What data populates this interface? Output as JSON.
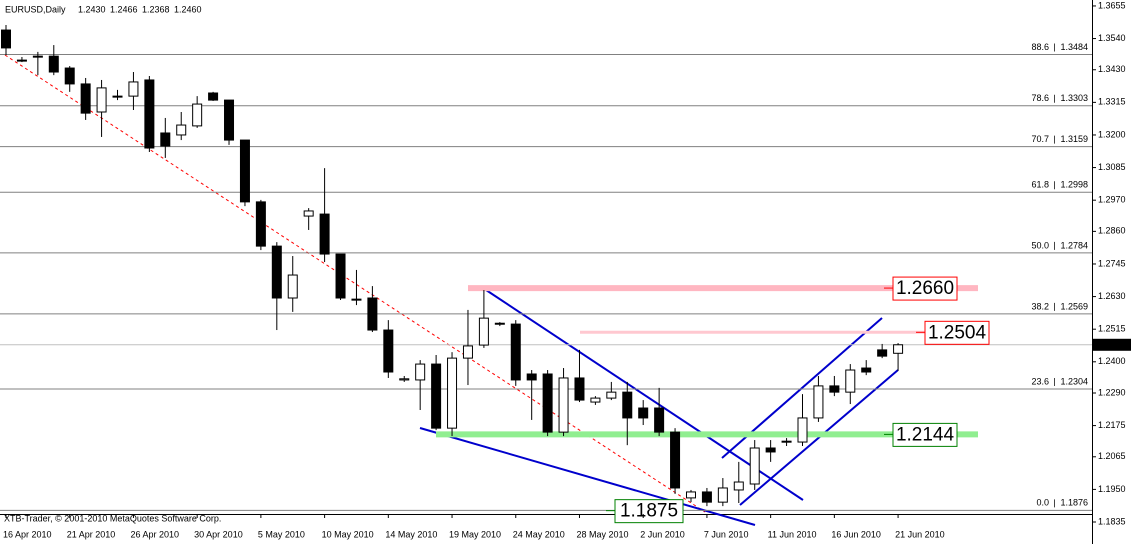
{
  "chart_data": {
    "type": "candlestick",
    "header": {
      "title": "EURUSD,Daily",
      "values": [
        "1.2430",
        "1.2466",
        "1.2368",
        "1.2460"
      ]
    },
    "footer": "XTB-Trader, © 2001-2010 MetaQuotes Software Corp.",
    "categories": [
      "16 Apr 2010",
      null,
      null,
      null,
      "21 Apr 2010",
      null,
      null,
      null,
      "26 Apr 2010",
      null,
      null,
      null,
      "30 Apr 2010",
      null,
      null,
      null,
      "5 May 2010",
      null,
      null,
      null,
      "10 May 2010",
      null,
      null,
      null,
      "14 May 2010",
      null,
      null,
      null,
      "19 May 2010",
      null,
      null,
      null,
      "24 May 2010",
      null,
      null,
      null,
      "28 May 2010",
      null,
      null,
      null,
      "2 Jun 2010",
      null,
      null,
      null,
      "7 Jun 2010",
      null,
      null,
      null,
      "11 Jun 2010",
      null,
      null,
      null,
      "16 Jun 2010",
      null,
      null,
      null,
      "21 Jun 2010"
    ],
    "open": [
      1.357,
      1.3461,
      1.3478,
      1.3478,
      1.3436,
      1.338,
      1.3281,
      1.3337,
      1.3337,
      1.3394,
      1.3207,
      1.32,
      1.3232,
      1.3348,
      1.3323,
      1.3182,
      1.2964,
      1.2808,
      1.2625,
      1.2914,
      1.2921,
      1.278,
      1.2621,
      1.2625,
      1.2512,
      1.2336,
      1.2336,
      1.2392,
      1.2166,
      1.2413,
      1.2459,
      1.2533,
      1.2533,
      1.2357,
      1.2357,
      1.2152,
      1.2343,
      1.2258,
      1.2272,
      1.2293,
      1.2237,
      1.2237,
      1.2152,
      1.192,
      1.1941,
      1.1905,
      1.1948,
      1.1969,
      1.2096,
      1.2117,
      1.2117,
      1.2202,
      1.2315,
      1.2293,
      1.2378,
      1.2442,
      1.243
    ],
    "high": [
      1.3588,
      1.3475,
      1.3493,
      1.3517,
      1.3443,
      1.3401,
      1.3394,
      1.3359,
      1.3422,
      1.3408,
      1.326,
      1.3281,
      1.3337,
      1.3352,
      1.3323,
      1.3182,
      1.2971,
      1.2822,
      1.2773,
      1.2942,
      1.3083,
      1.278,
      1.2724,
      1.2667,
      1.2547,
      1.235,
      1.2406,
      1.2424,
      1.2434,
      1.2583,
      1.2653,
      1.254,
      1.2547,
      1.2371,
      1.2371,
      1.2378,
      1.2442,
      1.2279,
      1.2329,
      1.2329,
      1.2265,
      1.2308,
      1.2166,
      1.1948,
      1.1955,
      1.199,
      1.2047,
      1.2124,
      1.2124,
      1.2131,
      1.2286,
      1.235,
      1.235,
      1.2392,
      1.2406,
      1.2463,
      1.2466
    ],
    "low": [
      1.3482,
      1.3457,
      1.3411,
      1.3411,
      1.3352,
      1.3253,
      1.3193,
      1.3323,
      1.3288,
      1.314,
      1.3119,
      1.3182,
      1.3225,
      1.332,
      1.3165,
      1.2949,
      1.2794,
      1.2512,
      1.2576,
      1.2865,
      1.2752,
      1.2618,
      1.26,
      1.2505,
      1.2343,
      1.2329,
      1.223,
      1.2159,
      1.2138,
      1.2318,
      1.2449,
      1.2526,
      1.2315,
      1.2195,
      1.2138,
      1.2138,
      1.2258,
      1.2248,
      1.2265,
      1.2106,
      1.2177,
      1.2138,
      1.1934,
      1.1905,
      1.1891,
      1.1891,
      1.1902,
      1.1948,
      1.2047,
      1.2103,
      1.2103,
      1.2188,
      1.2279,
      1.2251,
      1.2353,
      1.2413,
      1.2368
    ],
    "close": [
      1.3507,
      1.3464,
      1.3475,
      1.3422,
      1.338,
      1.3277,
      1.3366,
      1.3334,
      1.3387,
      1.3154,
      1.3161,
      1.3235,
      1.3309,
      1.3323,
      1.3182,
      1.2964,
      1.2808,
      1.2625,
      1.2706,
      1.2932,
      1.278,
      1.2625,
      1.2618,
      1.2512,
      1.2364,
      1.234,
      1.2392,
      1.2166,
      1.2413,
      1.2456,
      1.2554,
      1.2536,
      1.2336,
      1.2336,
      1.2152,
      1.2343,
      1.2265,
      1.2272,
      1.2293,
      1.2202,
      1.2202,
      1.2152,
      1.1955,
      1.1941,
      1.1905,
      1.1955,
      1.1976,
      1.2096,
      1.2082,
      1.212,
      1.2202,
      1.2315,
      1.2293,
      1.2371,
      1.2364,
      1.242,
      1.246
    ],
    "up_color": "#ffffff",
    "down_color": "#000000",
    "ylim": [
      1.1835,
      1.3676
    ],
    "yticks": [
      1.3655,
      {
        "value": 1.354,
        "label": "1.3540"
      },
      {
        "value": 1.343,
        "label": "1.3430"
      },
      1.3315,
      {
        "value": 1.32,
        "label": "1.3200"
      },
      1.3085,
      {
        "value": 1.297,
        "label": "1.2970"
      },
      {
        "value": 1.286,
        "label": "1.2860"
      },
      1.2745,
      {
        "value": 1.263,
        "label": "1.2630"
      },
      1.2515,
      {
        "value": 1.24,
        "label": "1.2400"
      },
      {
        "value": 1.229,
        "label": "1.2290"
      },
      1.2175,
      1.2065,
      {
        "value": 1.195,
        "label": "1.1950"
      },
      1.1835
    ],
    "fib_levels": [
      {
        "ratio": "88.6",
        "value": 1.3484
      },
      {
        "ratio": "78.6",
        "value": 1.3303
      },
      {
        "ratio": "70.7",
        "value": 1.3159
      },
      {
        "ratio": "61.8",
        "value": 1.2998
      },
      {
        "ratio": "50.0",
        "value": 1.2784
      },
      {
        "ratio": "38.2",
        "value": 1.2569
      },
      {
        "ratio": "23.6",
        "value": 1.2304
      },
      {
        "ratio": "0.0",
        "value": 1.1876
      }
    ],
    "levels": [
      {
        "value": 1.266,
        "label": "1.2660",
        "color": "#ff0000",
        "band": "#ffb6c1"
      },
      {
        "value": 1.2504,
        "label": "1.2504",
        "color": "#ff0000",
        "band": "#ffc8d0"
      },
      {
        "value": 1.2144,
        "label": "1.2144",
        "color": "#008000",
        "band": "#90ee90"
      },
      {
        "value": 1.1875,
        "label": "1.1875",
        "color": "#008000"
      }
    ]
  }
}
